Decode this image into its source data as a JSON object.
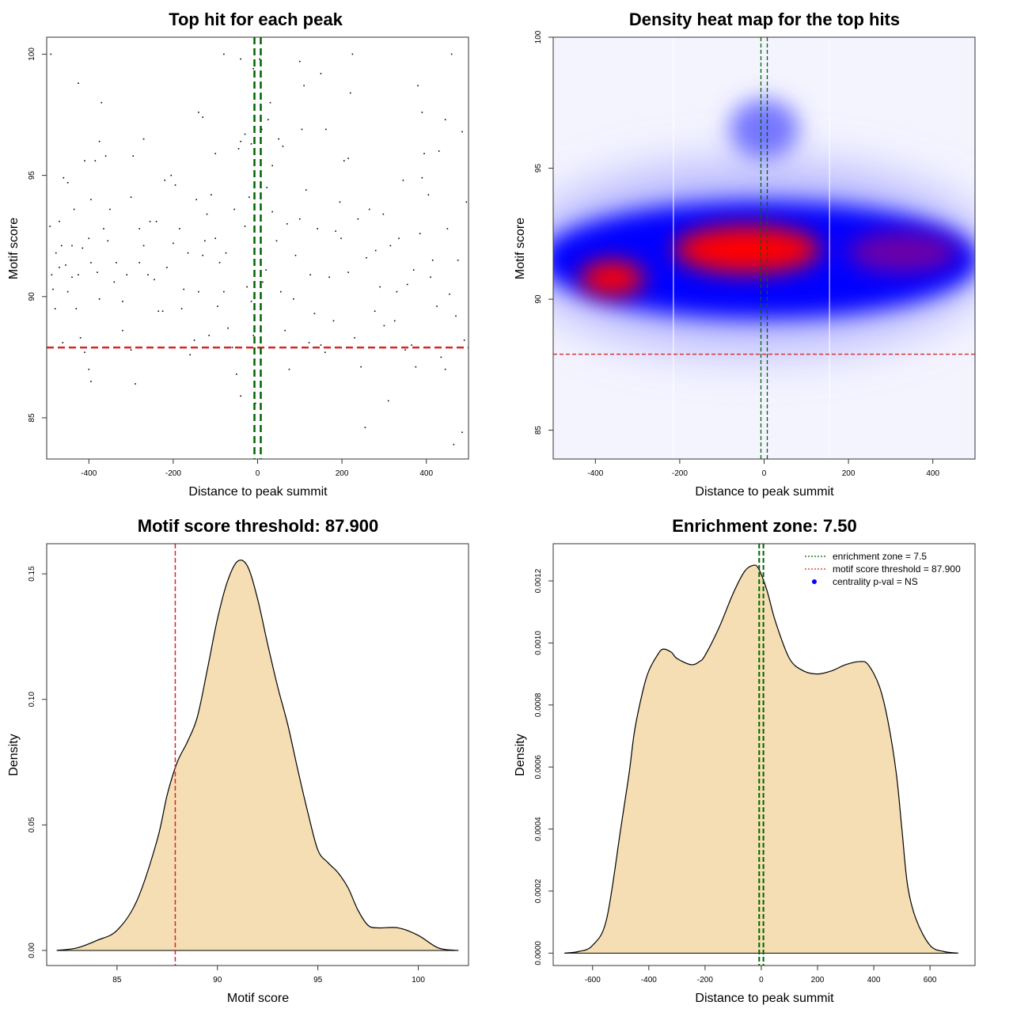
{
  "chart_data": [
    {
      "type": "scatter",
      "title": "Top hit for each peak",
      "xlabel": "Distance to peak summit",
      "ylabel": "Motif score",
      "xlim": [
        -500,
        500
      ],
      "ylim": [
        83.3,
        100.7
      ],
      "xticks": [
        -400,
        -200,
        0,
        200,
        400
      ],
      "xtick_labels": [
        "-400",
        "-200",
        "0",
        "200",
        "400"
      ],
      "yticks": [
        85,
        90,
        95,
        100
      ],
      "ytick_labels": [
        "85",
        "90",
        "95",
        "100"
      ],
      "grid": false,
      "hlines": [
        {
          "y": 87.9,
          "color": "#d62728",
          "style": "dashed"
        }
      ],
      "vlines": [
        {
          "x": -7.5,
          "color": "#006400",
          "style": "dashed"
        },
        {
          "x": 7.5,
          "color": "#006400",
          "style": "dashed"
        }
      ],
      "points": [
        [
          -490,
          100.0
        ],
        [
          -425,
          98.8
        ],
        [
          -370,
          98.0
        ],
        [
          -80,
          100.0
        ],
        [
          -40,
          99.8
        ],
        [
          -10,
          99.4
        ],
        [
          5,
          99.8
        ],
        [
          30,
          98.0
        ],
        [
          100,
          99.7
        ],
        [
          110,
          98.7
        ],
        [
          150,
          99.2
        ],
        [
          225,
          100.0
        ],
        [
          220,
          98.4
        ],
        [
          380,
          98.7
        ],
        [
          460,
          100.0
        ],
        [
          390,
          97.6
        ],
        [
          485,
          96.8
        ],
        [
          445,
          97.3
        ],
        [
          25,
          97.3
        ],
        [
          60,
          96.2
        ],
        [
          10,
          96.9
        ],
        [
          -15,
          96.3
        ],
        [
          -30,
          96.7
        ],
        [
          -40,
          96.4
        ],
        [
          -45,
          96.1
        ],
        [
          -100,
          95.9
        ],
        [
          -140,
          97.6
        ],
        [
          -130,
          97.4
        ],
        [
          -270,
          96.5
        ],
        [
          -295,
          95.8
        ],
        [
          -375,
          96.4
        ],
        [
          -360,
          95.8
        ],
        [
          -385,
          95.6
        ],
        [
          -410,
          95.6
        ],
        [
          -450,
          94.7
        ],
        [
          -460,
          94.9
        ],
        [
          -470,
          93.1
        ],
        [
          -465,
          92.1
        ],
        [
          -455,
          91.3
        ],
        [
          -440,
          90.8
        ],
        [
          -430,
          89.5
        ],
        [
          -420,
          88.3
        ],
        [
          -410,
          87.7
        ],
        [
          -400,
          87.0
        ],
        [
          -395,
          86.5
        ],
        [
          -480,
          89.5
        ],
        [
          -485,
          90.3
        ],
        [
          -492,
          92.9
        ],
        [
          -470,
          91.2
        ],
        [
          -440,
          92.1
        ],
        [
          -425,
          90.9
        ],
        [
          -400,
          92.4
        ],
        [
          -395,
          91.4
        ],
        [
          -380,
          91.0
        ],
        [
          -365,
          92.8
        ],
        [
          -350,
          93.6
        ],
        [
          -335,
          91.4
        ],
        [
          -320,
          89.8
        ],
        [
          -310,
          90.9
        ],
        [
          -300,
          87.8
        ],
        [
          -290,
          86.4
        ],
        [
          -280,
          91.4
        ],
        [
          -270,
          92.1
        ],
        [
          -255,
          93.1
        ],
        [
          -245,
          90.7
        ],
        [
          -235,
          89.4
        ],
        [
          -225,
          89.4
        ],
        [
          -215,
          91.2
        ],
        [
          -205,
          95.0
        ],
        [
          -195,
          94.6
        ],
        [
          -185,
          92.8
        ],
        [
          -175,
          90.3
        ],
        [
          -160,
          87.6
        ],
        [
          -150,
          88.2
        ],
        [
          -140,
          90.2
        ],
        [
          -130,
          91.7
        ],
        [
          -120,
          93.4
        ],
        [
          -110,
          94.2
        ],
        [
          -100,
          92.4
        ],
        [
          -90,
          91.4
        ],
        [
          -80,
          90.2
        ],
        [
          -70,
          88.7
        ],
        [
          -60,
          87.9
        ],
        [
          -50,
          86.8
        ],
        [
          -40,
          85.9
        ],
        [
          -30,
          92.9
        ],
        [
          -20,
          94.1
        ],
        [
          -15,
          89.8
        ],
        [
          -5,
          85.6
        ],
        [
          -10,
          88.4
        ],
        [
          20,
          91.1
        ],
        [
          35,
          93.5
        ],
        [
          45,
          92.3
        ],
        [
          55,
          90.2
        ],
        [
          65,
          88.6
        ],
        [
          75,
          87.0
        ],
        [
          90,
          91.7
        ],
        [
          100,
          93.2
        ],
        [
          115,
          94.4
        ],
        [
          125,
          90.9
        ],
        [
          135,
          89.3
        ],
        [
          150,
          88.0
        ],
        [
          160,
          87.7
        ],
        [
          170,
          90.8
        ],
        [
          185,
          92.7
        ],
        [
          195,
          93.9
        ],
        [
          205,
          95.6
        ],
        [
          215,
          91.0
        ],
        [
          230,
          88.3
        ],
        [
          245,
          87.1
        ],
        [
          255,
          84.6
        ],
        [
          265,
          93.6
        ],
        [
          280,
          91.9
        ],
        [
          290,
          90.4
        ],
        [
          300,
          88.8
        ],
        [
          310,
          85.7
        ],
        [
          325,
          89.0
        ],
        [
          335,
          92.4
        ],
        [
          345,
          94.8
        ],
        [
          355,
          90.5
        ],
        [
          365,
          88.0
        ],
        [
          375,
          87.1
        ],
        [
          385,
          92.6
        ],
        [
          395,
          95.9
        ],
        [
          405,
          94.2
        ],
        [
          415,
          91.5
        ],
        [
          425,
          89.6
        ],
        [
          435,
          87.5
        ],
        [
          445,
          87.0
        ],
        [
          455,
          90.1
        ],
        [
          465,
          83.9
        ],
        [
          475,
          91.5
        ],
        [
          485,
          84.4
        ],
        [
          495,
          93.9
        ],
        [
          490,
          88.2
        ],
        [
          470,
          89.2
        ],
        [
          450,
          92.8
        ],
        [
          430,
          96.0
        ],
        [
          410,
          90.8
        ],
        [
          390,
          94.9
        ],
        [
          370,
          91.1
        ],
        [
          350,
          87.8
        ],
        [
          330,
          90.2
        ],
        [
          315,
          92.1
        ],
        [
          298,
          93.4
        ],
        [
          278,
          89.4
        ],
        [
          258,
          91.6
        ],
        [
          238,
          93.2
        ],
        [
          215,
          95.7
        ],
        [
          198,
          92.4
        ],
        [
          180,
          89.0
        ],
        [
          162,
          96.9
        ],
        [
          142,
          92.8
        ],
        [
          122,
          88.1
        ],
        [
          105,
          96.9
        ],
        [
          85,
          89.9
        ],
        [
          70,
          93.0
        ],
        [
          50,
          96.5
        ],
        [
          35,
          95.4
        ],
        [
          22,
          94.5
        ],
        [
          12,
          90.6
        ],
        [
          -25,
          90.4
        ],
        [
          -55,
          93.6
        ],
        [
          -75,
          91.8
        ],
        [
          -95,
          89.6
        ],
        [
          -115,
          88.4
        ],
        [
          -125,
          92.3
        ],
        [
          -145,
          94.0
        ],
        [
          -165,
          91.8
        ],
        [
          -180,
          89.5
        ],
        [
          -200,
          92.2
        ],
        [
          -220,
          94.8
        ],
        [
          -240,
          93.1
        ],
        [
          -260,
          90.9
        ],
        [
          -280,
          92.8
        ],
        [
          -300,
          94.1
        ],
        [
          -320,
          88.6
        ],
        [
          -340,
          90.6
        ],
        [
          -355,
          92.3
        ],
        [
          -375,
          89.9
        ],
        [
          -395,
          94.0
        ],
        [
          -415,
          92.0
        ],
        [
          -435,
          93.6
        ],
        [
          -450,
          90.2
        ],
        [
          -462,
          88.1
        ],
        [
          -478,
          91.8
        ],
        [
          -488,
          90.9
        ]
      ]
    },
    {
      "type": "heatmap",
      "title": "Density heat map for the top hits",
      "xlabel": "Distance to peak summit",
      "ylabel": "Motif score",
      "xlim": [
        -500,
        500
      ],
      "ylim": [
        83.9,
        100.0
      ],
      "xticks": [
        -400,
        -200,
        0,
        200,
        400
      ],
      "xtick_labels": [
        "-400",
        "-200",
        "0",
        "200",
        "400"
      ],
      "yticks": [
        85,
        90,
        95,
        100
      ],
      "ytick_labels": [
        "85",
        "90",
        "95",
        "100"
      ],
      "colors": [
        "#ffffff",
        "#0000ff",
        "#ff0000"
      ],
      "hlines": [
        {
          "y": 87.9,
          "color": "#d62728",
          "style": "dashed"
        }
      ],
      "vlines": [
        {
          "x": -7.5,
          "color": "#006400",
          "style": "dashed"
        },
        {
          "x": 7.5,
          "color": "#006400",
          "style": "dashed"
        }
      ],
      "hotspots": [
        {
          "x": -360,
          "y": 90.8,
          "weight": 0.92
        },
        {
          "x": -40,
          "y": 91.9,
          "weight": 1.0
        },
        {
          "x": 330,
          "y": 91.8,
          "weight": 0.7
        },
        {
          "x": 0,
          "y": 96.5,
          "weight": 0.35
        }
      ]
    },
    {
      "type": "area",
      "title": "Motif score threshold: 87.900",
      "xlabel": "Motif score",
      "ylabel": "Density",
      "xlim": [
        81.5,
        102.5
      ],
      "ylim": [
        -0.006,
        0.162
      ],
      "xticks": [
        85,
        90,
        95,
        100
      ],
      "xtick_labels": [
        "85",
        "90",
        "95",
        "100"
      ],
      "yticks": [
        0,
        0.05,
        0.1,
        0.15
      ],
      "ytick_labels": [
        "0.00",
        "0.05",
        "0.10",
        "0.15"
      ],
      "fill": "#f5deb3",
      "vlines": [
        {
          "x": 87.9,
          "color": "#d62728",
          "style": "dashed"
        }
      ],
      "x": [
        82.0,
        83.0,
        84.0,
        85.0,
        86.0,
        87.0,
        87.5,
        88.0,
        88.5,
        89.0,
        89.5,
        90.0,
        90.5,
        91.0,
        91.5,
        92.0,
        92.5,
        93.0,
        93.5,
        94.0,
        94.5,
        95.0,
        95.5,
        96.0,
        96.5,
        97.0,
        97.5,
        98.0,
        99.0,
        100.0,
        101.0,
        102.0
      ],
      "y": [
        0.0,
        0.001,
        0.004,
        0.008,
        0.02,
        0.044,
        0.062,
        0.075,
        0.083,
        0.093,
        0.112,
        0.132,
        0.147,
        0.155,
        0.153,
        0.14,
        0.122,
        0.105,
        0.09,
        0.072,
        0.055,
        0.04,
        0.035,
        0.031,
        0.025,
        0.016,
        0.01,
        0.009,
        0.009,
        0.006,
        0.001,
        0.0
      ]
    },
    {
      "type": "area",
      "title": "Enrichment zone: 7.50",
      "xlabel": "Distance to peak summit",
      "ylabel": "Density",
      "xlim": [
        -740,
        760
      ],
      "ylim": [
        -4e-05,
        0.00132
      ],
      "xticks": [
        -600,
        -400,
        -200,
        0,
        200,
        400,
        600
      ],
      "xtick_labels": [
        "-600",
        "-400",
        "-200",
        "0",
        "200",
        "400",
        "600"
      ],
      "yticks": [
        0,
        0.0002,
        0.0004,
        0.0006,
        0.0008,
        0.001,
        0.0012
      ],
      "ytick_labels": [
        "0.0000",
        "0.0002",
        "0.0004",
        "0.0006",
        "0.0008",
        "0.0010",
        "0.0012"
      ],
      "fill": "#f5deb3",
      "vlines": [
        {
          "x": -7.5,
          "color": "#006400",
          "style": "dashed"
        },
        {
          "x": 7.5,
          "color": "#006400",
          "style": "dashed"
        }
      ],
      "x": [
        -700,
        -650,
        -600,
        -550,
        -500,
        -470,
        -450,
        -420,
        -400,
        -370,
        -350,
        -320,
        -300,
        -250,
        -220,
        -200,
        -150,
        -100,
        -60,
        -30,
        -10,
        20,
        50,
        100,
        150,
        200,
        250,
        300,
        350,
        380,
        420,
        450,
        480,
        500,
        520,
        550,
        600,
        650,
        700
      ],
      "y": [
        0.0,
        5e-06,
        2.5e-05,
        0.00011,
        0.0004,
        0.00058,
        0.00072,
        0.00085,
        0.00091,
        0.00096,
        0.00098,
        0.00097,
        0.00095,
        0.00093,
        0.00094,
        0.00096,
        0.00105,
        0.00116,
        0.00123,
        0.00125,
        0.00124,
        0.00117,
        0.00107,
        0.00095,
        0.00091,
        0.0009,
        0.00091,
        0.00093,
        0.00094,
        0.00093,
        0.00086,
        0.00075,
        0.00058,
        0.0004,
        0.00022,
        0.00011,
        2.5e-05,
        5e-06,
        0.0
      ]
    }
  ],
  "legend": {
    "items": [
      {
        "label": "enrichment zone = 7.5",
        "color": "#006400",
        "kind": "dotted-line"
      },
      {
        "label": "motif score threshold = 87.900",
        "color": "#d62728",
        "kind": "dotted-line"
      },
      {
        "label": "centrality p-val = NS",
        "color": "#0000ff",
        "kind": "dot"
      }
    ]
  }
}
